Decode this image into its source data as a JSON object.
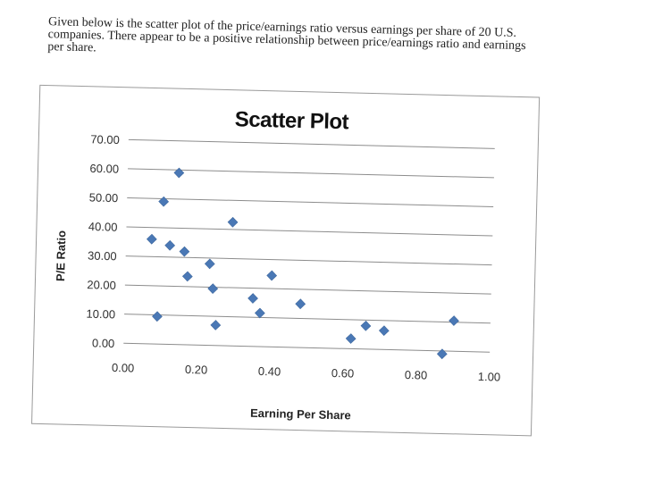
{
  "intro": {
    "lines": [
      "Given below is the scatter plot of the price/earnings ratio versus earnings per share of 20 U.S.",
      "companies. There appear to be a positive relationship between price/earnings ratio and earnings",
      "per share."
    ]
  },
  "chart_data": {
    "type": "scatter",
    "title": "Scatter Plot",
    "xlabel": "Earning Per Share",
    "ylabel": "P/E Ratio",
    "xlim": [
      0.0,
      1.0
    ],
    "ylim": [
      0.0,
      70.0
    ],
    "x_ticks": [
      "0.00",
      "0.20",
      "0.40",
      "0.60",
      "0.80",
      "1.00"
    ],
    "y_ticks": [
      "70.00",
      "60.00",
      "50.00",
      "40.00",
      "30.00",
      "20.00",
      "10.00",
      "0.00"
    ],
    "grid": "horizontal",
    "marker_color": "#4a78b5",
    "points": [
      {
        "x": 0.07,
        "y": 36.0
      },
      {
        "x": 0.09,
        "y": 9.5
      },
      {
        "x": 0.1,
        "y": 49.0
      },
      {
        "x": 0.12,
        "y": 34.0
      },
      {
        "x": 0.14,
        "y": 59.0
      },
      {
        "x": 0.16,
        "y": 32.0
      },
      {
        "x": 0.17,
        "y": 23.5
      },
      {
        "x": 0.23,
        "y": 28.0
      },
      {
        "x": 0.24,
        "y": 19.5
      },
      {
        "x": 0.25,
        "y": 7.0
      },
      {
        "x": 0.29,
        "y": 42.5
      },
      {
        "x": 0.35,
        "y": 16.5
      },
      {
        "x": 0.37,
        "y": 11.5
      },
      {
        "x": 0.4,
        "y": 24.5
      },
      {
        "x": 0.48,
        "y": 15.0
      },
      {
        "x": 0.62,
        "y": 3.5
      },
      {
        "x": 0.66,
        "y": 8.0
      },
      {
        "x": 0.71,
        "y": 6.5
      },
      {
        "x": 0.87,
        "y": -1.0
      },
      {
        "x": 0.9,
        "y": 10.5
      }
    ]
  }
}
